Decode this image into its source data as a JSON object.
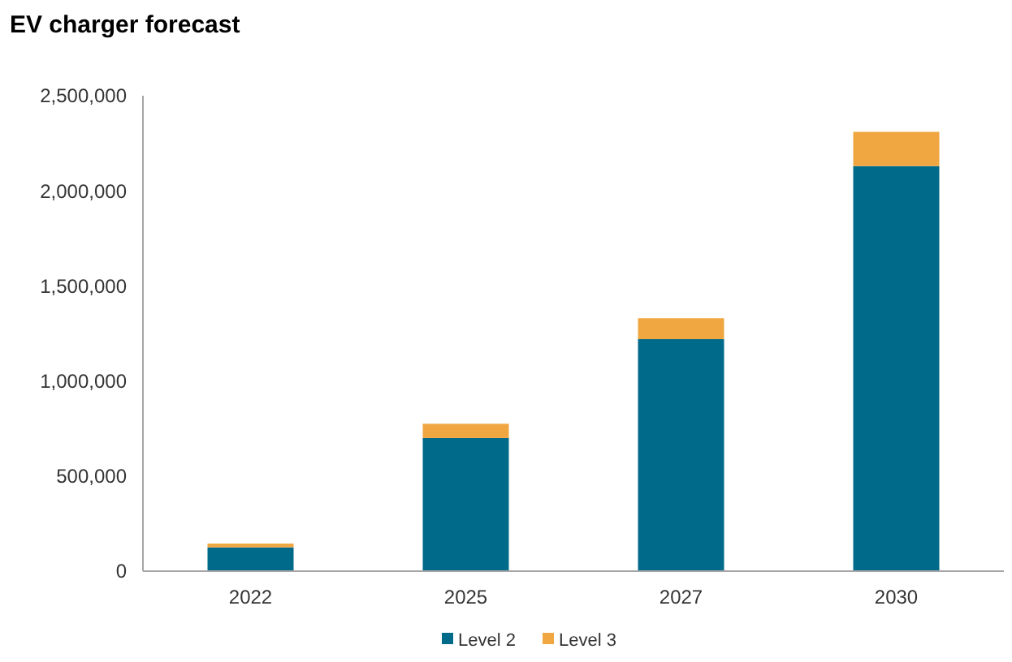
{
  "chart_data": {
    "type": "bar",
    "title": "EV charger forecast",
    "categories": [
      "2022",
      "2025",
      "2027",
      "2030"
    ],
    "stacked": true,
    "series": [
      {
        "name": "Level 2",
        "color": "#006a8a",
        "values": [
          125000,
          700000,
          1220000,
          2130000
        ]
      },
      {
        "name": "Level 3",
        "color": "#f0a742",
        "values": [
          20000,
          75000,
          110000,
          180000
        ]
      }
    ],
    "ylim": [
      0,
      2500000
    ],
    "yticks": [
      {
        "value": 0,
        "label": "0"
      },
      {
        "value": 500000,
        "label": "500,000"
      },
      {
        "value": 1000000,
        "label": "1,000,000"
      },
      {
        "value": 1500000,
        "label": "1,500,000"
      },
      {
        "value": 2000000,
        "label": "2,000,000"
      },
      {
        "value": 2500000,
        "label": "2,500,000"
      }
    ],
    "grid": false,
    "legend": "bottom"
  }
}
